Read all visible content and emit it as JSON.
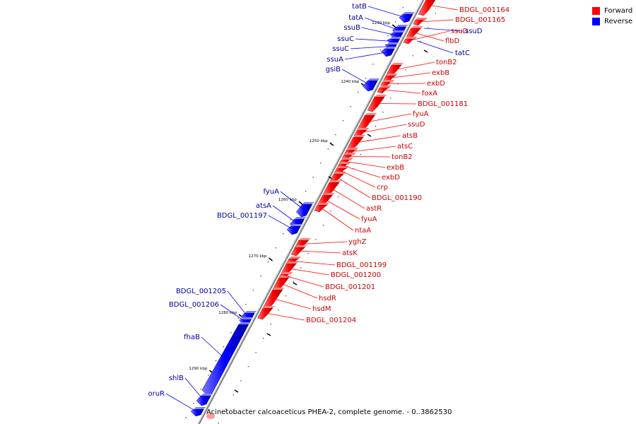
{
  "caption": "Acinetobacter calcoaceticus PHEA-2, complete genome. - 0..3862530",
  "legend": [
    {
      "label": "Forward",
      "color": "#ff0000"
    },
    {
      "label": "Reverse",
      "color": "#0000ff"
    }
  ],
  "colors": {
    "forward": "#ff0000",
    "reverse": "#0000ff",
    "forward_label": "#cc0000",
    "reverse_label": "#000099",
    "axis": "#808080"
  },
  "ticks": [
    "1230 kbp",
    "1240 kbp",
    "1250 kbp",
    "1260 kbp",
    "1270 kbp",
    "1280 kbp",
    "1290 kbp"
  ],
  "genes_forward": [
    "BDGL_001164",
    "BDGL_001165",
    "flbD",
    "ssuD",
    "tonB2",
    "exbB",
    "exbD",
    "foxA",
    "BDGL_001181",
    "fyuA",
    "ssuD",
    "atsB",
    "atsC",
    "tonB2",
    "exbB",
    "exbD",
    "crp",
    "BDGL_001190",
    "astR",
    "fyuA",
    "ntaA",
    "yghZ",
    "atsK",
    "BDGL_001199",
    "BDGL_001200",
    "BDGL_001201",
    "hsdR",
    "hsdM",
    "BDGL_001204"
  ],
  "genes_reverse": [
    "tatB",
    "tatA",
    "ssuB",
    "ssuC",
    "ssuC",
    "ssuA",
    "gsiB",
    "ssuD",
    "tatC",
    "fyuA",
    "atsA",
    "BDGL_001197",
    "BDGL_001205",
    "BDGL_001206",
    "fhaB",
    "shlB",
    "oruR"
  ]
}
